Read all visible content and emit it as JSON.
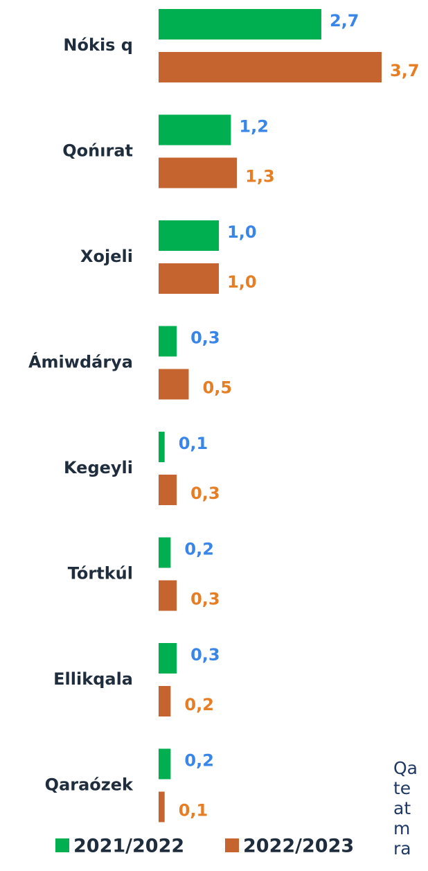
{
  "chart_data": {
    "type": "bar",
    "orientation": "horizontal",
    "categories": [
      "Nókis q",
      "Qońırat",
      "Xojeli",
      "Ámiwdárya",
      "Kegeyli",
      "Tórtkúl",
      "Ellikqala",
      "Qaraózek"
    ],
    "series": [
      {
        "name": "2021/2022",
        "color": "#00b050",
        "label_color": "#3a86e8",
        "values": [
          2.7,
          1.2,
          1.0,
          0.3,
          0.1,
          0.2,
          0.3,
          0.2
        ],
        "value_labels": [
          "2,7",
          "1,2",
          "1,0",
          "0,3",
          "0,1",
          "0,2",
          "0,3",
          "0,2"
        ]
      },
      {
        "name": "2022/2023",
        "color": "#c5642f",
        "label_color": "#e57e25",
        "values": [
          3.7,
          1.3,
          1.0,
          0.5,
          0.3,
          0.3,
          0.2,
          0.1
        ],
        "value_labels": [
          "3,7",
          "1,3",
          "1,0",
          "0,5",
          "0,3",
          "0,3",
          "0,2",
          "0,1"
        ]
      }
    ],
    "xlim": [
      0,
      3.7
    ],
    "legend": "bottom"
  },
  "note_lines": [
    "Qa",
    "te",
    "at",
    "m",
    "ra"
  ]
}
